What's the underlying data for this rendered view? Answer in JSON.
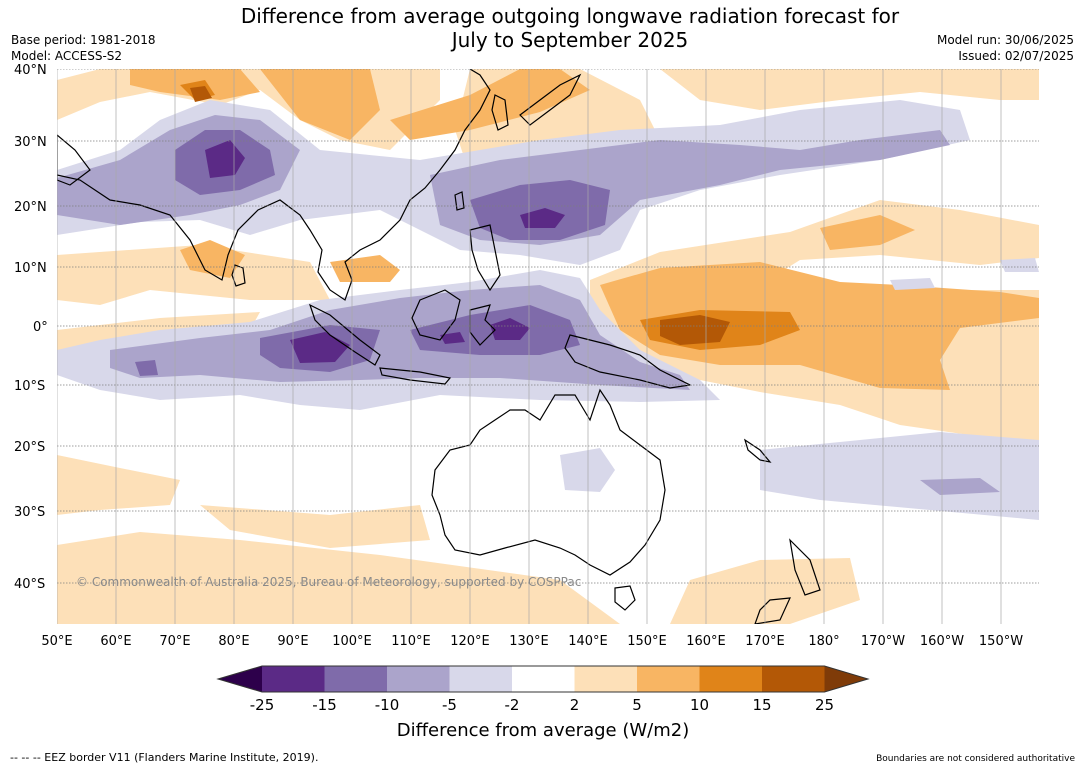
{
  "title_line1": "Difference from average outgoing longwave radiation forecast for",
  "title_line2": "July to September 2025",
  "base_period": "Base period: 1981-2018",
  "model": "Model: ACCESS-S2",
  "model_run": "Model run: 30/06/2025",
  "issued": "Issued: 02/07/2025",
  "copyright": "© Commonwealth of Australia 2025, Bureau of Meteorology, supported by COSPPac",
  "lat_labels": [
    "40°N",
    "30°N",
    "20°N",
    "10°N",
    "0°",
    "10°S",
    "20°S",
    "30°S",
    "40°S"
  ],
  "lon_labels": [
    "50°E",
    "60°E",
    "70°E",
    "80°E",
    "90°E",
    "100°E",
    "110°E",
    "120°E",
    "130°E",
    "140°E",
    "150°E",
    "160°E",
    "170°E",
    "180°",
    "170°W",
    "160°W",
    "150°W"
  ],
  "colorbar": {
    "title": "Difference from average (W/m2)",
    "ticks": [
      "-25",
      "-15",
      "-10",
      "-5",
      "-2",
      "2",
      "5",
      "10",
      "15",
      "25"
    ],
    "colors": [
      "#5b2a86",
      "#7f6baa",
      "#aba4cb",
      "#d8d8ea",
      "#ffffff",
      "#fde0b8",
      "#f8b563",
      "#e08419",
      "#b35806"
    ],
    "under_color": "#2d004b",
    "over_color": "#7f3b08"
  },
  "footer_left": "--  --  -- EEZ border V11 (Flanders Marine Institute, 2019).",
  "footer_right": "Boundaries are not considered authoritative"
}
